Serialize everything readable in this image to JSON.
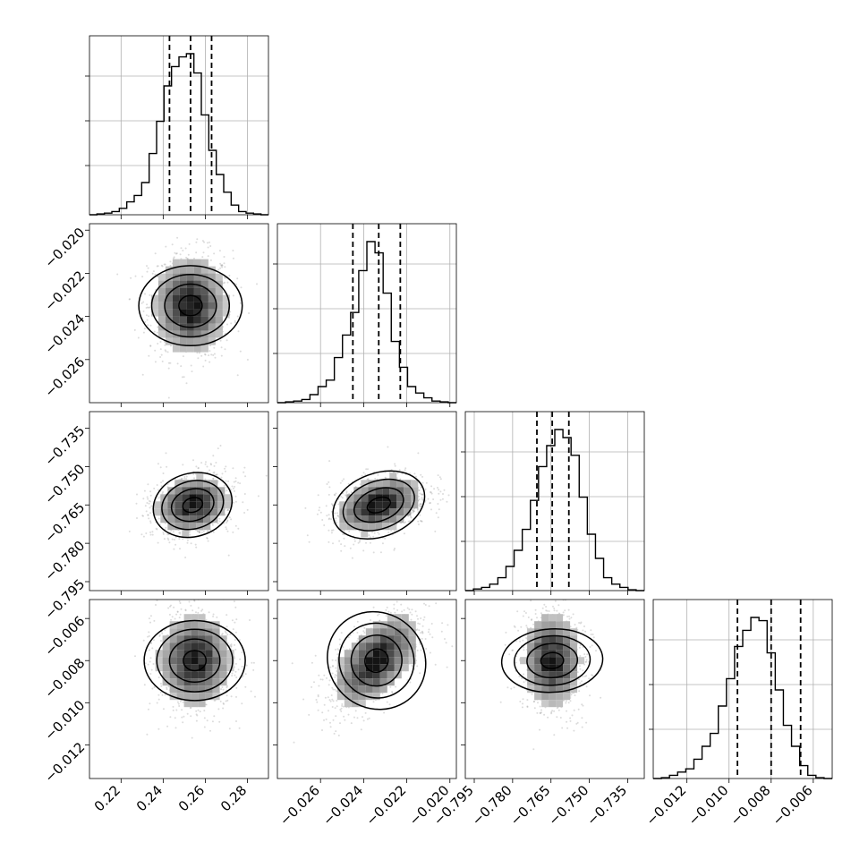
{
  "chart_data": {
    "type": "corner",
    "grid": true,
    "parameters": [
      {
        "range": [
          0.205,
          0.29
        ],
        "ticks": [
          0.22,
          0.24,
          0.26,
          0.28
        ],
        "tick_labels": [
          "0.22",
          "0.24",
          "0.26",
          "0.28"
        ],
        "quantiles": [
          0.243,
          0.253,
          0.263
        ],
        "histogram": [
          0,
          0.005,
          0.01,
          0.02,
          0.04,
          0.08,
          0.12,
          0.2,
          0.38,
          0.58,
          0.8,
          0.92,
          0.98,
          1.0,
          0.88,
          0.62,
          0.4,
          0.25,
          0.14,
          0.06,
          0.02,
          0.01,
          0.005,
          0
        ]
      },
      {
        "range": [
          -0.028,
          -0.0197
        ],
        "ticks": [
          -0.026,
          -0.024,
          -0.022,
          -0.02
        ],
        "tick_labels": [
          "−0.026",
          "−0.024",
          "−0.022",
          "−0.020"
        ],
        "quantiles": [
          -0.0245,
          -0.0233,
          -0.0223
        ],
        "histogram": [
          0,
          0.005,
          0.01,
          0.02,
          0.05,
          0.1,
          0.14,
          0.28,
          0.42,
          0.56,
          0.82,
          1.0,
          0.93,
          0.68,
          0.38,
          0.22,
          0.1,
          0.06,
          0.03,
          0.01,
          0.005,
          0
        ]
      },
      {
        "range": [
          -0.7985,
          -0.7285
        ],
        "ticks": [
          -0.795,
          -0.78,
          -0.765,
          -0.75,
          -0.735
        ],
        "tick_labels": [
          "−0.795",
          "−0.780",
          "−0.765",
          "−0.750",
          "−0.735"
        ],
        "quantiles": [
          -0.7705,
          -0.7645,
          -0.758
        ],
        "histogram": [
          0,
          0.01,
          0.02,
          0.04,
          0.08,
          0.15,
          0.25,
          0.38,
          0.56,
          0.77,
          0.9,
          1.0,
          0.95,
          0.84,
          0.58,
          0.35,
          0.2,
          0.08,
          0.04,
          0.02,
          0.005,
          0
        ]
      },
      {
        "range": [
          -0.0136,
          -0.0051
        ],
        "ticks": [
          -0.012,
          -0.01,
          -0.008,
          -0.006
        ],
        "tick_labels": [
          "−0.012",
          "−0.010",
          "−0.008",
          "−0.006"
        ],
        "quantiles": [
          -0.0096,
          -0.008,
          -0.0066
        ],
        "histogram": [
          0,
          0.005,
          0.02,
          0.04,
          0.06,
          0.12,
          0.2,
          0.28,
          0.45,
          0.62,
          0.82,
          0.92,
          1.0,
          0.98,
          0.78,
          0.55,
          0.33,
          0.2,
          0.08,
          0.02,
          0.005,
          0
        ]
      }
    ],
    "pairs": [
      {
        "x": 0,
        "y": 1,
        "center": [
          0.253,
          -0.0235
        ],
        "sigma": [
          0.0095,
          0.0012
        ],
        "rho": 0.0
      },
      {
        "x": 0,
        "y": 2,
        "center": [
          0.254,
          -0.765
        ],
        "sigma": [
          0.0095,
          0.0062
        ],
        "rho": 0.15
      },
      {
        "x": 1,
        "y": 2,
        "center": [
          -0.0233,
          -0.765
        ],
        "sigma": [
          0.0011,
          0.0062
        ],
        "rho": 0.35
      },
      {
        "x": 0,
        "y": 3,
        "center": [
          0.255,
          -0.008
        ],
        "sigma": [
          0.0095,
          0.0012
        ],
        "rho": 0.0
      },
      {
        "x": 1,
        "y": 3,
        "center": [
          -0.0234,
          -0.008
        ],
        "sigma": [
          0.0011,
          0.0012
        ],
        "rho": 0.55
      },
      {
        "x": 2,
        "y": 3,
        "center": [
          -0.7645,
          -0.008
        ],
        "sigma": [
          0.0062,
          0.0012
        ],
        "rho": -0.05
      }
    ]
  }
}
